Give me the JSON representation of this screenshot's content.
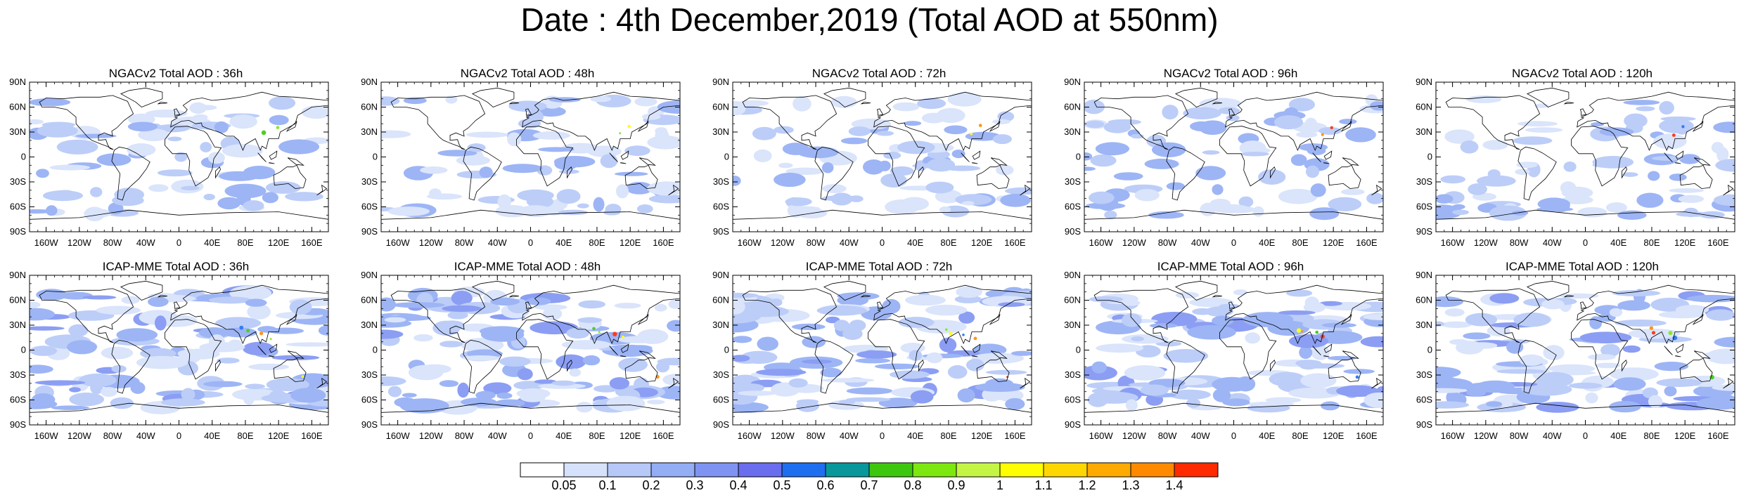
{
  "title": "Date : 4th December,2019 (Total AOD at 550nm)",
  "panels": [
    {
      "title": "NGACv2 Total AOD : 36h"
    },
    {
      "title": "NGACv2 Total AOD : 48h"
    },
    {
      "title": "NGACv2 Total AOD : 72h"
    },
    {
      "title": "NGACv2 Total AOD : 96h"
    },
    {
      "title": "NGACv2 Total AOD : 120h"
    },
    {
      "title": "ICAP-MME Total AOD : 36h"
    },
    {
      "title": "ICAP-MME Total AOD : 48h"
    },
    {
      "title": "ICAP-MME Total AOD : 72h"
    },
    {
      "title": "ICAP-MME Total AOD : 96h"
    },
    {
      "title": "ICAP-MME Total AOD : 120h"
    }
  ],
  "lat_labels": [
    "90N",
    "60N",
    "30N",
    "0",
    "30S",
    "60S",
    "90S"
  ],
  "lon_labels": [
    "160W",
    "120W",
    "80W",
    "40W",
    "0",
    "40E",
    "80E",
    "120E",
    "160E"
  ],
  "colorbar": {
    "colors": [
      "#ffffff",
      "#d6e2fb",
      "#b5c8f8",
      "#93aef5",
      "#7f94f2",
      "#6a6ded",
      "#1e6ef0",
      "#08979a",
      "#3ec70f",
      "#7ce80f",
      "#c4f545",
      "#ffff00",
      "#ffd700",
      "#ffaa00",
      "#ff8a00",
      "#ff2a00"
    ],
    "labels": [
      "0.05",
      "0.1",
      "0.2",
      "0.3",
      "0.4",
      "0.5",
      "0.6",
      "0.7",
      "0.8",
      "0.9",
      "1",
      "1.1",
      "1.2",
      "1.3",
      "1.4"
    ]
  }
}
